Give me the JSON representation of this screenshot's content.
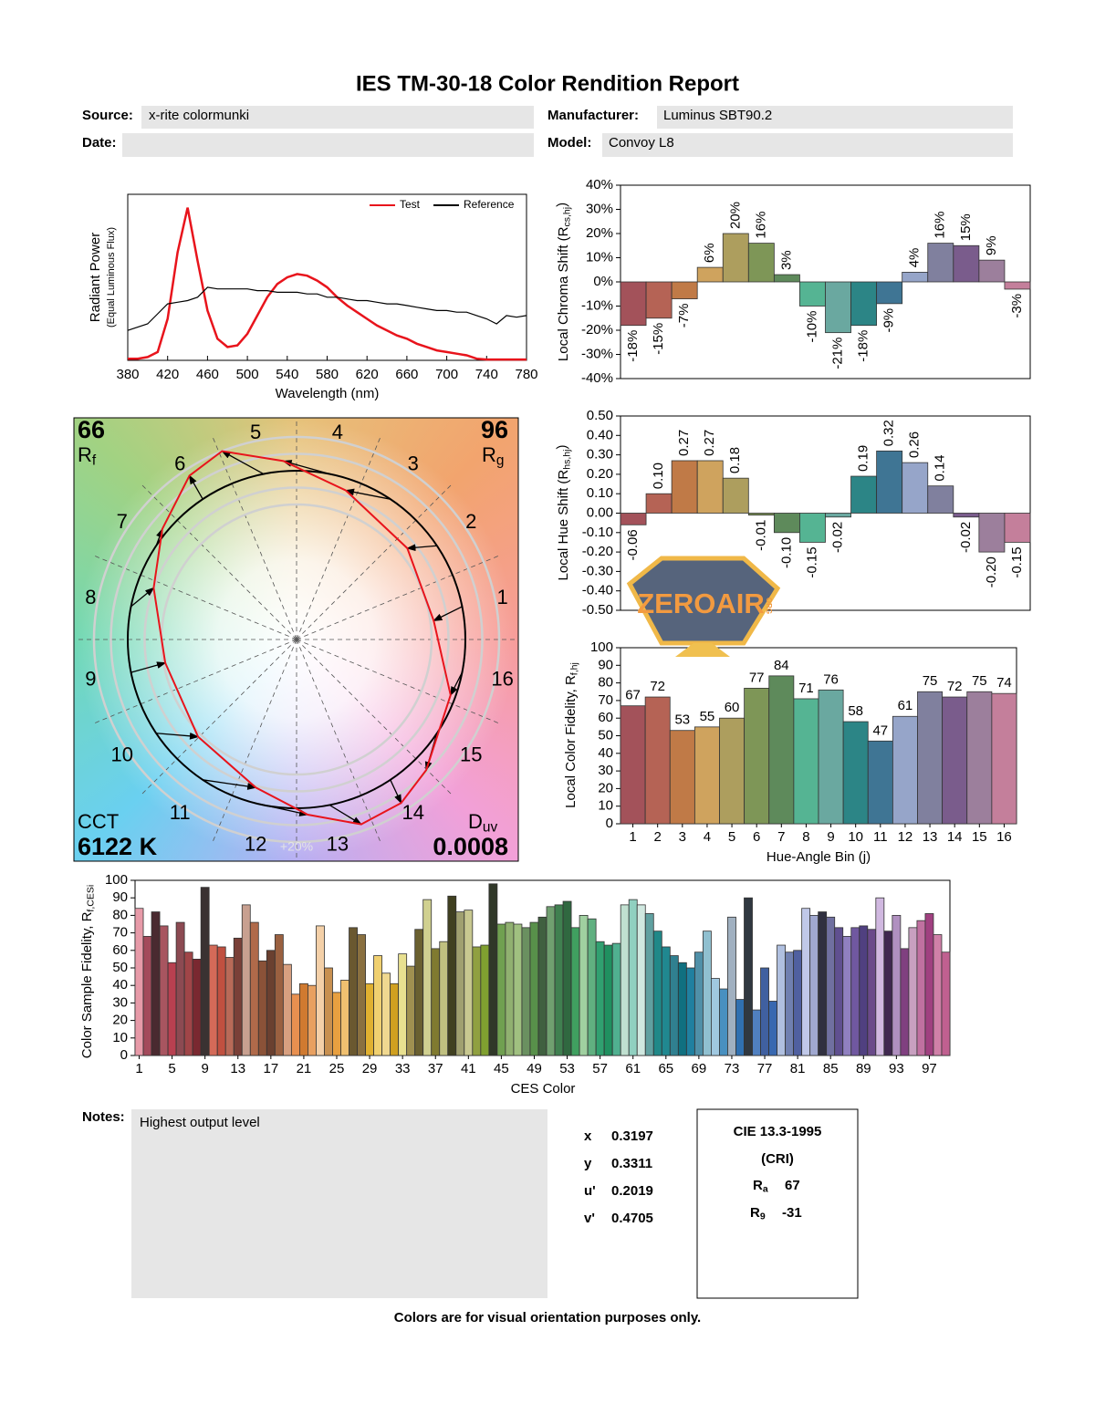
{
  "header": {
    "title": "IES TM-30-18 Color Rendition Report",
    "source_label": "Source:",
    "source": "x-rite colormunki",
    "manufacturer_label": "Manufacturer:",
    "manufacturer": "Luminus SBT90.2",
    "date_label": "Date:",
    "model_label": "Model:",
    "model": "Convoy L8"
  },
  "chart_data": [
    {
      "type": "line",
      "xlabel": "Wavelength (nm)",
      "ylabel": [
        "Radiant Power",
        "(Equal Luminous Flux)"
      ],
      "legend": "upper right",
      "x": [
        380,
        390,
        400,
        410,
        420,
        430,
        440,
        450,
        460,
        470,
        480,
        490,
        500,
        510,
        520,
        530,
        540,
        550,
        560,
        570,
        580,
        590,
        600,
        610,
        620,
        630,
        640,
        650,
        660,
        670,
        680,
        690,
        700,
        710,
        720,
        730,
        740,
        750,
        760,
        770,
        780
      ],
      "series": [
        {
          "name": "Test",
          "color": "#e8141c",
          "values": [
            0.01,
            0.01,
            0.02,
            0.05,
            0.25,
            0.65,
            0.92,
            0.6,
            0.3,
            0.13,
            0.08,
            0.09,
            0.16,
            0.27,
            0.38,
            0.46,
            0.5,
            0.52,
            0.51,
            0.48,
            0.44,
            0.38,
            0.33,
            0.29,
            0.25,
            0.21,
            0.18,
            0.15,
            0.13,
            0.1,
            0.08,
            0.06,
            0.05,
            0.04,
            0.03,
            0.01,
            0.005,
            0.005,
            0.005,
            0.005,
            0.005
          ]
        },
        {
          "name": "Reference",
          "color": "#000000",
          "values": [
            0.18,
            0.2,
            0.22,
            0.28,
            0.34,
            0.35,
            0.36,
            0.38,
            0.44,
            0.43,
            0.43,
            0.43,
            0.43,
            0.42,
            0.42,
            0.41,
            0.41,
            0.41,
            0.4,
            0.4,
            0.38,
            0.38,
            0.37,
            0.36,
            0.36,
            0.35,
            0.34,
            0.34,
            0.33,
            0.32,
            0.31,
            0.3,
            0.3,
            0.29,
            0.29,
            0.27,
            0.25,
            0.22,
            0.27,
            0.26,
            0.27
          ]
        }
      ],
      "xlim": [
        380,
        780
      ],
      "xticks": [
        380,
        420,
        460,
        500,
        540,
        580,
        620,
        660,
        700,
        740,
        780
      ],
      "ylim": [
        0,
        1
      ]
    },
    {
      "type": "bar",
      "ylabel": [
        "Local Chroma Shift (R",
        "cs,hj",
        ")"
      ],
      "values": [
        -18,
        -15,
        -7,
        6,
        20,
        16,
        3,
        -10,
        -21,
        -18,
        -9,
        4,
        16,
        15,
        9,
        -3
      ],
      "value_labels": [
        "-18%",
        "-15%",
        "-7%",
        "6%",
        "20%",
        "16%",
        "3%",
        "-10%",
        "-21%",
        "-18%",
        "-9%",
        "4%",
        "16%",
        "15%",
        "9%",
        "-3%"
      ],
      "colors": [
        "#a3525a",
        "#b56355",
        "#c07a47",
        "#cfa35e",
        "#ad9e5e",
        "#7e9657",
        "#5e8a5b",
        "#55b493",
        "#6aa8a0",
        "#2c8586",
        "#3f7594",
        "#96a5c9",
        "#80809e",
        "#7a5c8c",
        "#9c7f9c",
        "#c47f9b"
      ],
      "ylim": [
        -40,
        40
      ],
      "yticks": [
        {
          "value": 40,
          "label": "40%"
        },
        {
          "value": 30,
          "label": "30%"
        },
        {
          "value": 20,
          "label": "20%"
        },
        {
          "value": 10,
          "label": "10%"
        },
        {
          "value": 0,
          "label": "0%"
        },
        {
          "value": -10,
          "label": "-10%"
        },
        {
          "value": -20,
          "label": "-20%"
        },
        {
          "value": -30,
          "label": "-30%"
        },
        {
          "value": -40,
          "label": "-40%"
        }
      ]
    },
    {
      "type": "bar",
      "ylabel": [
        "Local Hue Shift (R",
        "hs,hj",
        ")"
      ],
      "values": [
        -0.06,
        0.1,
        0.27,
        0.27,
        0.18,
        -0.01,
        -0.1,
        -0.15,
        -0.02,
        0.19,
        0.32,
        0.26,
        0.14,
        -0.02,
        -0.2,
        -0.15
      ],
      "value_labels": [
        "-0.06",
        "0.10",
        "0.27",
        "0.27",
        "0.18",
        "-0.01",
        "-0.10",
        "-0.15",
        "-0.02",
        "0.19",
        "0.32",
        "0.26",
        "0.14",
        "-0.02",
        "-0.20",
        "-0.15"
      ],
      "colors": [
        "#a3525a",
        "#b56355",
        "#c07a47",
        "#cfa35e",
        "#ad9e5e",
        "#7e9657",
        "#5e8a5b",
        "#55b493",
        "#6aa8a0",
        "#2c8586",
        "#3f7594",
        "#96a5c9",
        "#80809e",
        "#7a5c8c",
        "#9c7f9c",
        "#c47f9b"
      ],
      "ylim": [
        -0.5,
        0.5
      ],
      "yticks": [
        {
          "value": 0.5,
          "label": "0.50"
        },
        {
          "value": 0.4,
          "label": "0.40"
        },
        {
          "value": 0.3,
          "label": "0.30"
        },
        {
          "value": 0.2,
          "label": "0.20"
        },
        {
          "value": 0.1,
          "label": "0.10"
        },
        {
          "value": 0,
          "label": "0.00"
        },
        {
          "value": -0.1,
          "label": "-0.10"
        },
        {
          "value": -0.2,
          "label": "-0.20"
        },
        {
          "value": -0.3,
          "label": "-0.30"
        },
        {
          "value": -0.4,
          "label": "-0.40"
        },
        {
          "value": -0.5,
          "label": "-0.50"
        }
      ]
    },
    {
      "type": "vector",
      "rf": 66,
      "rf_label": [
        "R",
        "f"
      ],
      "rg": 96,
      "rg_label": [
        "R",
        "g"
      ],
      "cct_label": "CCT",
      "cct": "6122 K",
      "duv_label": [
        "D",
        "uv"
      ],
      "duv": 0.0008,
      "bin_labels": [
        "1",
        "2",
        "3",
        "4",
        "5",
        "6",
        "7",
        "8",
        "9",
        "10",
        "11",
        "12",
        "13",
        "14",
        "15",
        "16"
      ],
      "scale_label": "+20%"
    },
    {
      "type": "bar",
      "xlabel": "Hue-Angle Bin (j)",
      "ylabel": [
        "Local Color Fidelity, R",
        "f,hj",
        ""
      ],
      "categories": [
        "1",
        "2",
        "3",
        "4",
        "5",
        "6",
        "7",
        "8",
        "9",
        "10",
        "11",
        "12",
        "13",
        "14",
        "15",
        "16"
      ],
      "values": [
        67,
        72,
        53,
        55,
        60,
        77,
        84,
        71,
        76,
        58,
        47,
        61,
        75,
        72,
        75,
        74
      ],
      "colors": [
        "#a3525a",
        "#b56355",
        "#c07a47",
        "#cfa35e",
        "#ad9e5e",
        "#7e9657",
        "#5e8a5b",
        "#55b493",
        "#6aa8a0",
        "#2c8586",
        "#3f7594",
        "#96a5c9",
        "#80809e",
        "#7a5c8c",
        "#9c7f9c",
        "#c47f9b"
      ],
      "ylim": [
        0,
        100
      ],
      "yticks": [
        0,
        10,
        20,
        30,
        40,
        50,
        60,
        70,
        80,
        90,
        100
      ]
    },
    {
      "type": "bar",
      "xlabel": "CES Color",
      "ylabel": [
        "Color Sample Fidelity, R",
        "f,CESi",
        ""
      ],
      "categories": [
        "1",
        null,
        null,
        null,
        "5",
        null,
        null,
        null,
        "9",
        null,
        null,
        null,
        "13",
        null,
        null,
        null,
        "17",
        null,
        null,
        null,
        "21",
        null,
        null,
        null,
        "25",
        null,
        null,
        null,
        "29",
        null,
        null,
        null,
        "33",
        null,
        null,
        null,
        "37",
        null,
        null,
        null,
        "41",
        null,
        null,
        null,
        "45",
        null,
        null,
        null,
        "49",
        null,
        null,
        null,
        "53",
        null,
        null,
        null,
        "57",
        null,
        null,
        null,
        "61",
        null,
        null,
        null,
        "65",
        null,
        null,
        null,
        "69",
        null,
        null,
        null,
        "73",
        null,
        null,
        null,
        "77",
        null,
        null,
        null,
        "81",
        null,
        null,
        null,
        "85",
        null,
        null,
        null,
        "89",
        null,
        null,
        null,
        "93",
        null,
        null,
        null,
        "97",
        null,
        null
      ],
      "values": [
        84,
        68,
        82,
        74,
        53,
        76,
        59,
        55,
        96,
        63,
        62,
        56,
        67,
        86,
        76,
        54,
        60,
        69,
        52,
        35,
        41,
        40,
        74,
        50,
        36,
        43,
        73,
        69,
        41,
        57,
        47,
        41,
        58,
        51,
        72,
        89,
        61,
        65,
        91,
        82,
        83,
        62,
        63,
        98,
        75,
        76,
        75,
        73,
        76,
        79,
        85,
        86,
        88,
        73,
        80,
        78,
        65,
        63,
        64,
        86,
        89,
        86,
        81,
        71,
        62,
        57,
        53,
        50,
        59,
        71,
        44,
        38,
        79,
        32,
        90,
        26,
        50,
        31,
        63,
        59,
        60,
        84,
        80,
        82,
        79,
        73,
        68,
        73,
        74,
        72,
        90,
        71,
        80,
        61,
        73,
        77,
        81,
        69,
        59
      ],
      "colors": [
        "#e79aa8",
        "#a44a5b",
        "#4a2a30",
        "#a85560",
        "#b84050",
        "#8c4a52",
        "#a04548",
        "#7a2830",
        "#3a3232",
        "#d46a58",
        "#c05040",
        "#b86a58",
        "#7a4038",
        "#c8a090",
        "#b06a4a",
        "#8a5238",
        "#6a4030",
        "#9a6040",
        "#d8a080",
        "#e89050",
        "#d07a30",
        "#e8a060",
        "#f4d0a8",
        "#c89050",
        "#e8a040",
        "#f0c070",
        "#6a5830",
        "#8a7040",
        "#e0b030",
        "#f0d070",
        "#f0d890",
        "#d0a020",
        "#e8e090",
        "#a09050",
        "#6a6030",
        "#d0d090",
        "#807a30",
        "#c0c080",
        "#404020",
        "#a0a070",
        "#c8c890",
        "#90a040",
        "#80a030",
        "#303828",
        "#70a050",
        "#90b070",
        "#a0c080",
        "#6a9060",
        "#58904a",
        "#406040",
        "#70a070",
        "#408050",
        "#306840",
        "#40a060",
        "#a0d0a0",
        "#60b080",
        "#30a070",
        "#209060",
        "#50b090",
        "#c0e0d0",
        "#90d0c0",
        "#d0e8e0",
        "#60a0a0",
        "#208888",
        "#208890",
        "#308090",
        "#107080",
        "#2080a0",
        "#5090a8",
        "#90c0d0",
        "#a0c8e0",
        "#4890c0",
        "#a0b0c0",
        "#3070b0",
        "#303840",
        "#5080c0",
        "#4060a0",
        "#3868b0",
        "#b0c0e0",
        "#7080b0",
        "#5060a0",
        "#c0c8e8",
        "#a0a8d0",
        "#303040",
        "#7070a0",
        "#605090",
        "#9080c0",
        "#7058a0",
        "#504080",
        "#6a4a8a",
        "#d0b8e0",
        "#402850",
        "#b090c0",
        "#804080",
        "#c8a0c0",
        "#c070a0",
        "#a04080",
        "#d080a8",
        "#c06090"
      ],
      "ylim": [
        0,
        100
      ],
      "yticks": [
        0,
        10,
        20,
        30,
        40,
        50,
        60,
        70,
        80,
        90,
        100
      ]
    }
  ],
  "notes": {
    "label": "Notes:",
    "text": "Highest output level"
  },
  "chromaticity": {
    "labels": [
      "x",
      "y",
      "u'",
      "v'"
    ],
    "values": [
      0.3197,
      0.3311,
      0.2019,
      0.4705
    ]
  },
  "cri": {
    "title": "CIE 13.3-1995",
    "subtitle": "(CRI)",
    "ra_label": [
      "R",
      "a"
    ],
    "ra": 67,
    "r9_label": [
      "R",
      "9"
    ],
    "r9": -31
  },
  "footer": "Colors are for visual orientation purposes only.",
  "watermark": {
    "text": "ZEROAIR",
    "sub": "ORG"
  }
}
